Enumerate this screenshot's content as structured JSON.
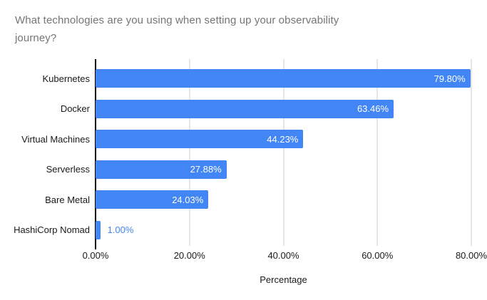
{
  "chart_data": {
    "type": "bar",
    "orientation": "horizontal",
    "title": "What technologies are you using when setting up your observability journey?",
    "categories": [
      "Kubernetes",
      "Docker",
      "Virtual Machines",
      "Serverless",
      "Bare Metal",
      "HashiCorp Nomad"
    ],
    "values": [
      79.8,
      63.46,
      44.23,
      27.88,
      24.03,
      1.0
    ],
    "value_labels": [
      "79.80%",
      "63.46%",
      "44.23%",
      "27.88%",
      "24.03%",
      "1.00%"
    ],
    "xlabel": "Percentage",
    "ylabel": "",
    "xlim": [
      0,
      80
    ],
    "x_ticks": [
      {
        "label": "0.00%",
        "value": 0
      },
      {
        "label": "20.00%",
        "value": 20
      },
      {
        "label": "40.00%",
        "value": 40
      },
      {
        "label": "60.00%",
        "value": 60
      },
      {
        "label": "80.00%",
        "value": 80
      }
    ],
    "grid": true,
    "legend": "none",
    "colors": {
      "bar": "#4285f4",
      "value_label_inside": "#ffffff",
      "value_label_outside": "#4285f4",
      "title_text": "#757575",
      "axis_text": "#1a1a1a",
      "gridline": "#cccccc",
      "axis_line": "#000000",
      "background": "#ffffff"
    }
  }
}
